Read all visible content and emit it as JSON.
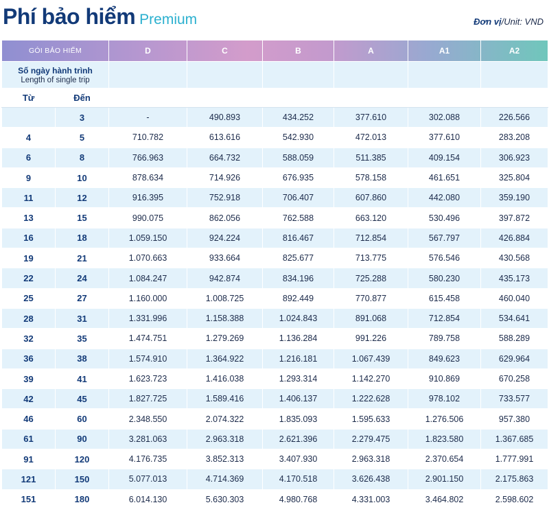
{
  "header": {
    "title_vi": "Phí bảo hiểm",
    "title_en": "Premium",
    "unit_label_vi": "Đơn vị",
    "unit_label_en": "/Unit: VND"
  },
  "table": {
    "plan_header": "GÓI BẢO HIỂM",
    "plans": [
      "D",
      "C",
      "B",
      "A",
      "A1",
      "A2"
    ],
    "days_label_vi": "Số ngày hành trình",
    "days_label_en": "Length of single trip",
    "from_label": "Từ",
    "to_label": "Đến",
    "rows": [
      {
        "from": "",
        "to": "3",
        "values": [
          "-",
          "490.893",
          "434.252",
          "377.610",
          "302.088",
          "226.566"
        ]
      },
      {
        "from": "4",
        "to": "5",
        "values": [
          "710.782",
          "613.616",
          "542.930",
          "472.013",
          "377.610",
          "283.208"
        ]
      },
      {
        "from": "6",
        "to": "8",
        "values": [
          "766.963",
          "664.732",
          "588.059",
          "511.385",
          "409.154",
          "306.923"
        ]
      },
      {
        "from": "9",
        "to": "10",
        "values": [
          "878.634",
          "714.926",
          "676.935",
          "578.158",
          "461.651",
          "325.804"
        ]
      },
      {
        "from": "11",
        "to": "12",
        "values": [
          "916.395",
          "752.918",
          "706.407",
          "607.860",
          "442.080",
          "359.190"
        ]
      },
      {
        "from": "13",
        "to": "15",
        "values": [
          "990.075",
          "862.056",
          "762.588",
          "663.120",
          "530.496",
          "397.872"
        ]
      },
      {
        "from": "16",
        "to": "18",
        "values": [
          "1.059.150",
          "924.224",
          "816.467",
          "712.854",
          "567.797",
          "426.884"
        ]
      },
      {
        "from": "19",
        "to": "21",
        "values": [
          "1.070.663",
          "933.664",
          "825.677",
          "713.775",
          "576.546",
          "430.568"
        ]
      },
      {
        "from": "22",
        "to": "24",
        "values": [
          "1.084.247",
          "942.874",
          "834.196",
          "725.288",
          "580.230",
          "435.173"
        ]
      },
      {
        "from": "25",
        "to": "27",
        "values": [
          "1.160.000",
          "1.008.725",
          "892.449",
          "770.877",
          "615.458",
          "460.040"
        ]
      },
      {
        "from": "28",
        "to": "31",
        "values": [
          "1.331.996",
          "1.158.388",
          "1.024.843",
          "891.068",
          "712.854",
          "534.641"
        ]
      },
      {
        "from": "32",
        "to": "35",
        "values": [
          "1.474.751",
          "1.279.269",
          "1.136.284",
          "991.226",
          "789.758",
          "588.289"
        ]
      },
      {
        "from": "36",
        "to": "38",
        "values": [
          "1.574.910",
          "1.364.922",
          "1.216.181",
          "1.067.439",
          "849.623",
          "629.964"
        ]
      },
      {
        "from": "39",
        "to": "41",
        "values": [
          "1.623.723",
          "1.416.038",
          "1.293.314",
          "1.142.270",
          "910.869",
          "670.258"
        ]
      },
      {
        "from": "42",
        "to": "45",
        "values": [
          "1.827.725",
          "1.589.416",
          "1.406.137",
          "1.222.628",
          "978.102",
          "733.577"
        ]
      },
      {
        "from": "46",
        "to": "60",
        "values": [
          "2.348.550",
          "2.074.322",
          "1.835.093",
          "1.595.633",
          "1.276.506",
          "957.380"
        ]
      },
      {
        "from": "61",
        "to": "90",
        "values": [
          "3.281.063",
          "2.963.318",
          "2.621.396",
          "2.279.475",
          "1.823.580",
          "1.367.685"
        ]
      },
      {
        "from": "91",
        "to": "120",
        "values": [
          "4.176.735",
          "3.852.313",
          "3.407.930",
          "2.963.318",
          "2.370.654",
          "1.777.991"
        ]
      },
      {
        "from": "121",
        "to": "150",
        "values": [
          "5.077.013",
          "4.714.369",
          "4.170.518",
          "3.626.438",
          "2.901.150",
          "2.175.863"
        ]
      },
      {
        "from": "151",
        "to": "180",
        "values": [
          "6.014.130",
          "5.630.303",
          "4.980.768",
          "4.331.003",
          "3.464.802",
          "2.598.602"
        ]
      }
    ]
  }
}
